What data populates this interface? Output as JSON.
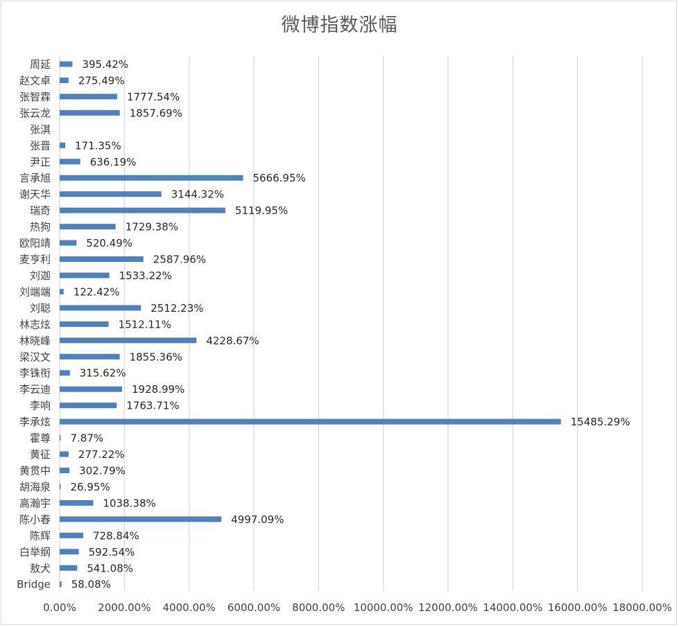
{
  "chart_data": {
    "type": "bar",
    "orientation": "horizontal",
    "title": "微博指数涨幅",
    "categories": [
      "周延",
      "赵文卓",
      "张智霖",
      "张云龙",
      "张淇",
      "张晋",
      "尹正",
      "言承旭",
      "谢天华",
      "瑞奇",
      "热狗",
      "欧阳靖",
      "麦亨利",
      "刘迦",
      "刘端端",
      "刘聪",
      "林志炫",
      "林晓峰",
      "梁汉文",
      "李铢衔",
      "李云迪",
      "李响",
      "李承炫",
      "霍尊",
      "黄征",
      "黄贯中",
      "胡海泉",
      "高瀚宇",
      "陈小春",
      "陈辉",
      "白举纲",
      "敖犬",
      "Bridge"
    ],
    "values": [
      395.42,
      275.49,
      1777.54,
      1857.69,
      null,
      171.35,
      636.19,
      5666.95,
      3144.32,
      5119.95,
      1729.38,
      520.49,
      2587.96,
      1533.22,
      122.42,
      2512.23,
      1512.11,
      4228.67,
      1855.36,
      315.62,
      1928.99,
      1763.71,
      15485.29,
      7.87,
      277.22,
      302.79,
      26.95,
      1038.38,
      4997.09,
      728.84,
      592.54,
      541.08,
      58.08
    ],
    "data_labels": [
      "395.42%",
      "275.49%",
      "1777.54%",
      "1857.69%",
      "",
      "171.35%",
      "636.19%",
      "5666.95%",
      "3144.32%",
      "5119.95%",
      "1729.38%",
      "520.49%",
      "2587.96%",
      "1533.22%",
      "122.42%",
      "2512.23%",
      "1512.11%",
      "4228.67%",
      "1855.36%",
      "315.62%",
      "1928.99%",
      "1763.71%",
      "15485.29%",
      "7.87%",
      "277.22%",
      "302.79%",
      "26.95%",
      "1038.38%",
      "4997.09%",
      "728.84%",
      "592.54%",
      "541.08%",
      "58.08%"
    ],
    "highlight_label_index": 26,
    "xlim": [
      0,
      18000
    ],
    "xticks": [
      0,
      2000,
      4000,
      6000,
      8000,
      10000,
      12000,
      14000,
      16000,
      18000
    ],
    "xtick_labels": [
      "0.00%",
      "2000.00%",
      "4000.00%",
      "6000.00%",
      "8000.00%",
      "10000.00%",
      "12000.00%",
      "14000.00%",
      "16000.00%",
      "18000.00%"
    ],
    "grid": "vertical",
    "legend": "none"
  },
  "colors": {
    "bar": "#4f81bd",
    "grid": "#d9d9d9",
    "highlight_label": "#00b050"
  }
}
